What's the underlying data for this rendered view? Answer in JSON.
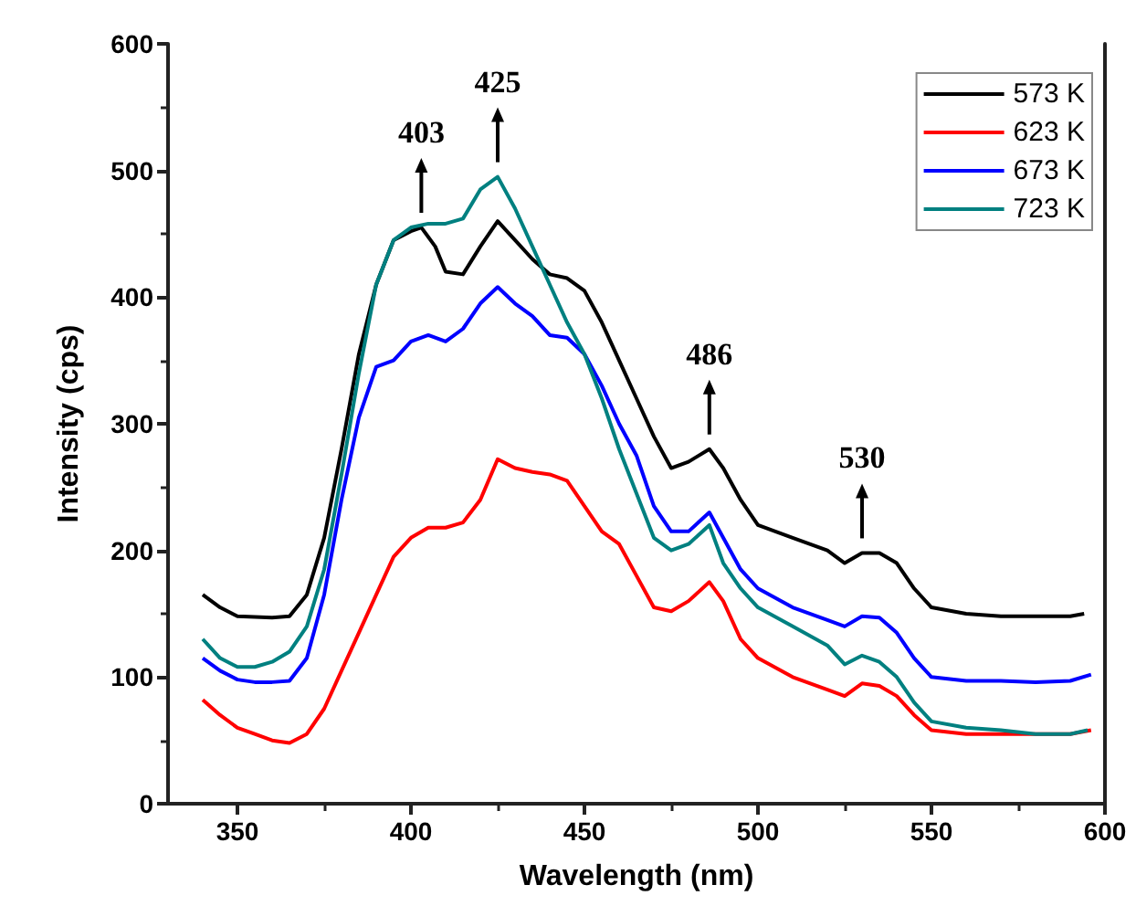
{
  "chart_data": {
    "type": "line",
    "xlabel": "Wavelength (nm)",
    "ylabel": "Intensity (cps)",
    "xlim": [
      330,
      600
    ],
    "xticks": [
      350,
      400,
      450,
      500,
      550,
      600
    ],
    "ylim": [
      0,
      600
    ],
    "yticks": [
      0,
      100,
      200,
      300,
      400,
      500,
      600
    ],
    "grid": false,
    "legend": "top right",
    "marker": "none",
    "line_style": "solid",
    "annotations": [
      {
        "text": "403",
        "x": 403,
        "y": 455
      },
      {
        "text": "425",
        "x": 425,
        "y": 495
      },
      {
        "text": "486",
        "x": 486,
        "y": 280
      },
      {
        "text": "530",
        "x": 530,
        "y": 198
      }
    ],
    "series": [
      {
        "name": "573 K",
        "color": "#000000",
        "x": [
          340,
          345,
          350,
          360,
          365,
          370,
          375,
          380,
          385,
          390,
          395,
          400,
          403,
          407,
          410,
          415,
          420,
          425,
          430,
          435,
          440,
          445,
          450,
          455,
          460,
          465,
          470,
          475,
          480,
          486,
          490,
          495,
          500,
          510,
          520,
          525,
          530,
          535,
          540,
          545,
          550,
          560,
          570,
          580,
          590,
          594
        ],
        "values": [
          165,
          155,
          148,
          147,
          148,
          165,
          210,
          280,
          355,
          410,
          445,
          452,
          455,
          440,
          420,
          418,
          440,
          460,
          445,
          430,
          418,
          415,
          405,
          380,
          350,
          320,
          290,
          265,
          270,
          280,
          265,
          240,
          220,
          210,
          200,
          190,
          198,
          198,
          190,
          170,
          155,
          150,
          148,
          148,
          148,
          150
        ]
      },
      {
        "name": "623 K",
        "color": "#ff0000",
        "x": [
          340,
          345,
          350,
          355,
          360,
          365,
          370,
          375,
          380,
          385,
          390,
          395,
          400,
          405,
          410,
          415,
          420,
          425,
          430,
          435,
          440,
          445,
          450,
          455,
          460,
          465,
          470,
          475,
          480,
          486,
          490,
          495,
          500,
          510,
          520,
          525,
          530,
          535,
          540,
          545,
          550,
          560,
          570,
          580,
          590,
          596
        ],
        "values": [
          82,
          70,
          60,
          55,
          50,
          48,
          55,
          75,
          105,
          135,
          165,
          195,
          210,
          218,
          218,
          222,
          240,
          272,
          265,
          262,
          260,
          255,
          235,
          215,
          205,
          180,
          155,
          152,
          160,
          175,
          160,
          130,
          115,
          100,
          90,
          85,
          95,
          93,
          85,
          70,
          58,
          55,
          55,
          55,
          55,
          58
        ]
      },
      {
        "name": "673 K",
        "color": "#0000ff",
        "x": [
          340,
          345,
          350,
          355,
          360,
          365,
          370,
          375,
          380,
          385,
          390,
          395,
          400,
          405,
          410,
          415,
          420,
          425,
          430,
          435,
          440,
          445,
          450,
          455,
          460,
          465,
          470,
          475,
          480,
          486,
          490,
          495,
          500,
          510,
          520,
          525,
          530,
          535,
          540,
          545,
          550,
          560,
          570,
          580,
          590,
          596
        ],
        "values": [
          115,
          105,
          98,
          96,
          96,
          97,
          115,
          165,
          240,
          305,
          345,
          350,
          365,
          370,
          365,
          375,
          395,
          408,
          395,
          385,
          370,
          368,
          355,
          330,
          300,
          275,
          235,
          215,
          215,
          230,
          210,
          185,
          170,
          155,
          145,
          140,
          148,
          147,
          135,
          115,
          100,
          97,
          97,
          96,
          97,
          102
        ]
      },
      {
        "name": "723 K",
        "color": "#008080",
        "x": [
          340,
          345,
          350,
          355,
          360,
          365,
          370,
          375,
          380,
          385,
          390,
          395,
          400,
          405,
          410,
          415,
          420,
          425,
          430,
          435,
          440,
          445,
          450,
          455,
          460,
          465,
          470,
          475,
          480,
          486,
          490,
          495,
          500,
          510,
          520,
          525,
          530,
          535,
          540,
          545,
          550,
          560,
          570,
          580,
          590,
          595
        ],
        "values": [
          130,
          115,
          108,
          108,
          112,
          120,
          140,
          185,
          260,
          340,
          410,
          445,
          455,
          458,
          458,
          462,
          485,
          495,
          470,
          440,
          410,
          380,
          355,
          320,
          280,
          245,
          210,
          200,
          205,
          220,
          190,
          170,
          155,
          140,
          125,
          110,
          117,
          112,
          100,
          80,
          65,
          60,
          58,
          55,
          55,
          58
        ]
      }
    ]
  }
}
